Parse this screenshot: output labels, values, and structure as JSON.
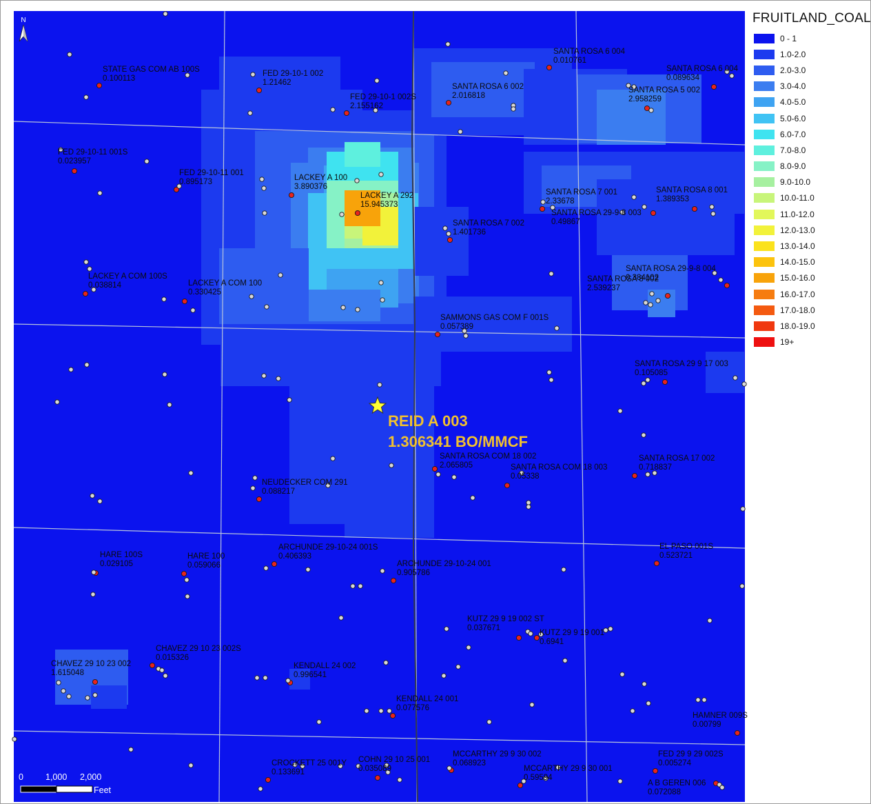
{
  "legend": {
    "title": "FRUITLAND_COAL",
    "classes": [
      {
        "label": "0 - 1",
        "color": "#0b13ee"
      },
      {
        "label": "1.0-2.0",
        "color": "#1c3aef"
      },
      {
        "label": "2.0-3.0",
        "color": "#2e5cf0"
      },
      {
        "label": "3.0-4.0",
        "color": "#3b7df0"
      },
      {
        "label": "4.0-5.0",
        "color": "#3ea3f2"
      },
      {
        "label": "5.0-6.0",
        "color": "#40c3f4"
      },
      {
        "label": "6.0-7.0",
        "color": "#3fe3f0"
      },
      {
        "label": "7.0-8.0",
        "color": "#5ef0de"
      },
      {
        "label": "8.0-9.0",
        "color": "#86f2c6"
      },
      {
        "label": "9.0-10.0",
        "color": "#a6f0a0"
      },
      {
        "label": "10.0-11.0",
        "color": "#c8f57a"
      },
      {
        "label": "11.0-12.0",
        "color": "#e2f75a"
      },
      {
        "label": "12.0-13.0",
        "color": "#f2f23a"
      },
      {
        "label": "13.0-14.0",
        "color": "#fbe21c"
      },
      {
        "label": "14.0-15.0",
        "color": "#fcc30d"
      },
      {
        "label": "15.0-16.0",
        "color": "#f8a30a"
      },
      {
        "label": "16.0-17.0",
        "color": "#f67c10"
      },
      {
        "label": "17.0-18.0",
        "color": "#f45a10"
      },
      {
        "label": "18.0-19.0",
        "color": "#f0380f"
      },
      {
        "label": "19+",
        "color": "#ee1010"
      }
    ]
  },
  "north_arrow": {
    "label": "N"
  },
  "featured_well": {
    "name": "REID A 003",
    "value_text": "1.306341 BO/MMCF",
    "marker": "star-icon"
  },
  "scale_bar": {
    "ticks": [
      "0",
      "1,000",
      "2,000"
    ],
    "unit": "Feet"
  },
  "wells": [
    {
      "name": "STATE GAS COM AB 100S",
      "value": "0.100113"
    },
    {
      "name": "FED 29-10-1 002",
      "value": "1.21462"
    },
    {
      "name": "FED 29-10-1 002S",
      "value": "2.155162"
    },
    {
      "name": "SANTA ROSA 6 002",
      "value": "2.016818"
    },
    {
      "name": "SANTA ROSA 6 004",
      "value": "0.010761"
    },
    {
      "name": "SANTA ROSA 6 004",
      "value": "0.089634"
    },
    {
      "name": "SANTA ROSA 5 002",
      "value": "2.958259"
    },
    {
      "name": "FED 29-10-11 001S",
      "value": "0.023957"
    },
    {
      "name": "FED 29-10-11 001",
      "value": "0.895173"
    },
    {
      "name": "LACKEY A 100",
      "value": "3.890376"
    },
    {
      "name": "LACKEY A 292",
      "value": "15.945373"
    },
    {
      "name": "SANTA ROSA 7 001",
      "value": "2.33678"
    },
    {
      "name": "SANTA ROSA 8 001",
      "value": "1.389353"
    },
    {
      "name": "SANTA ROSA 29-9-8 003",
      "value": "0.49867"
    },
    {
      "name": "SANTA ROSA 7 002",
      "value": "1.401736"
    },
    {
      "name": "LACKEY A COM 100S",
      "value": "0.038814"
    },
    {
      "name": "LACKEY A COM 100",
      "value": "0.330425"
    },
    {
      "name": "SANTA ROSA 29-9-8 004",
      "value": "0.384102"
    },
    {
      "name": "SANTA ROSA 8 002",
      "value": "2.539237"
    },
    {
      "name": "SAMMONS GAS COM F 001S",
      "value": "0.057389"
    },
    {
      "name": "SANTA ROSA 29 9 17 003",
      "value": "0.105085"
    },
    {
      "name": "SANTA ROSA COM 18 002",
      "value": "2.065805"
    },
    {
      "name": "SANTA ROSA COM 18 003",
      "value": "0.05338"
    },
    {
      "name": "SANTA ROSA 17 002",
      "value": "0.718837"
    },
    {
      "name": "NEUDECKER COM 291",
      "value": "0.088217"
    },
    {
      "name": "HARE 100S",
      "value": "0.029105"
    },
    {
      "name": "HARE 100",
      "value": "0.059066"
    },
    {
      "name": "ARCHUNDE 29-10-24 001S",
      "value": "0.406393"
    },
    {
      "name": "ARCHUNDE 29-10-24 001",
      "value": "0.905786"
    },
    {
      "name": "EL PASO 001S",
      "value": "0.523721"
    },
    {
      "name": "KUTZ 29 9 19 002 ST",
      "value": "0.037671"
    },
    {
      "name": "KUTZ 29 9 19 001",
      "value": "0.6941"
    },
    {
      "name": "CHAVEZ 29 10 23 002S",
      "value": "0.015326"
    },
    {
      "name": "CHAVEZ 29 10 23 002",
      "value": "1.615048"
    },
    {
      "name": "KENDALL 24 002",
      "value": "0.996541"
    },
    {
      "name": "KENDALL 24 001",
      "value": "0.077576"
    },
    {
      "name": "HAMNER 009S",
      "value": "0.00799"
    },
    {
      "name": "MCCARTHY 29 9 30 002",
      "value": "0.068923"
    },
    {
      "name": "MCCARTHY 29 9 30 001",
      "value": "0.59594"
    },
    {
      "name": "CROCKETT 25 001Y",
      "value": "0.133691"
    },
    {
      "name": "COHN 29 10 25 001",
      "value": "0.035089"
    },
    {
      "name": "FED 29 9 29 002S",
      "value": "0.005274"
    },
    {
      "name": "A B GEREN 006",
      "value": "0.072088"
    }
  ]
}
